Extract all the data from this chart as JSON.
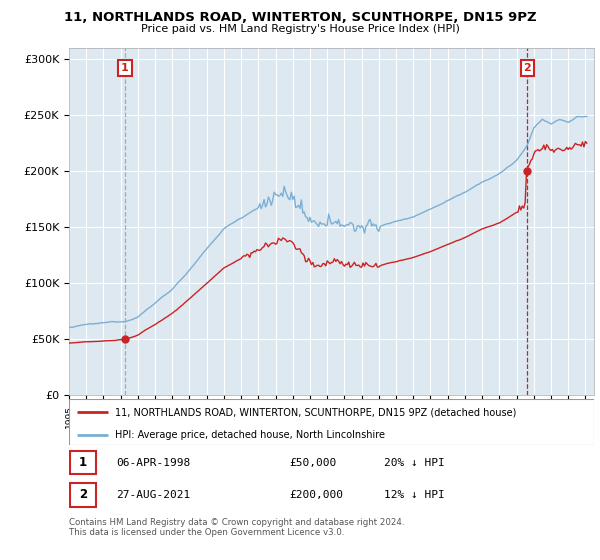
{
  "title": "11, NORTHLANDS ROAD, WINTERTON, SCUNTHORPE, DN15 9PZ",
  "subtitle": "Price paid vs. HM Land Registry's House Price Index (HPI)",
  "ylabel_ticks": [
    "£0",
    "£50K",
    "£100K",
    "£150K",
    "£200K",
    "£250K",
    "£300K"
  ],
  "ylim": [
    0,
    310000
  ],
  "yticks": [
    0,
    50000,
    100000,
    150000,
    200000,
    250000,
    300000
  ],
  "hpi_color": "#7bafd4",
  "price_color": "#cc2222",
  "vline1_color": "#aaaaaa",
  "vline2_color": "#cc2222",
  "chart_bg": "#dde8f0",
  "annotation1_label": "1",
  "annotation2_label": "2",
  "sale1_year": 1998.25,
  "sale1_price": 50000,
  "sale2_year": 2021.625,
  "sale2_price": 200000,
  "xlim_start": 1995,
  "xlim_end": 2025.5,
  "legend_line1": "11, NORTHLANDS ROAD, WINTERTON, SCUNTHORPE, DN15 9PZ (detached house)",
  "legend_line2": "HPI: Average price, detached house, North Lincolnshire",
  "table_row1": [
    "1",
    "06-APR-1998",
    "£50,000",
    "20% ↓ HPI"
  ],
  "table_row2": [
    "2",
    "27-AUG-2021",
    "£200,000",
    "12% ↓ HPI"
  ],
  "footnote": "Contains HM Land Registry data © Crown copyright and database right 2024.\nThis data is licensed under the Open Government Licence v3.0."
}
